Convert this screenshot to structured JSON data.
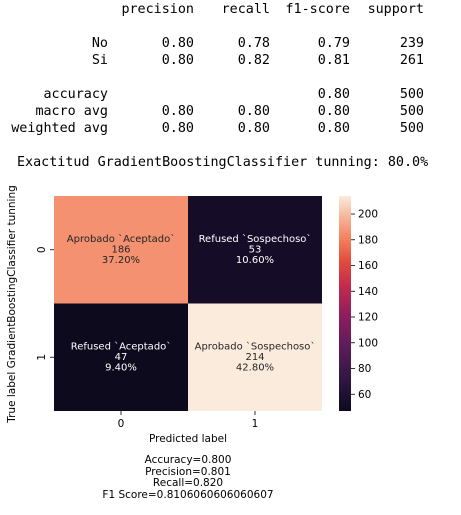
{
  "report": {
    "headers": [
      "precision",
      "recall",
      "f1-score",
      "support"
    ],
    "rows": [
      {
        "label": "No",
        "values": [
          "0.80",
          "0.78",
          "0.79",
          "239"
        ]
      },
      {
        "label": "Si",
        "values": [
          "0.80",
          "0.82",
          "0.81",
          "261"
        ]
      },
      {
        "label": "accuracy",
        "values": [
          "",
          "",
          "0.80",
          "500"
        ]
      },
      {
        "label": "macro avg",
        "values": [
          "0.80",
          "0.80",
          "0.80",
          "500"
        ]
      },
      {
        "label": "weighted avg",
        "values": [
          "0.80",
          "0.80",
          "0.80",
          "500"
        ]
      }
    ]
  },
  "exactitud_line": "Exactitud GradientBoostingClassifier tunning: 80.0%",
  "chart_data": {
    "type": "heatmap",
    "xlabel": "Predicted label",
    "ylabel": "True label GradientBoostingClassifier tunning",
    "x_ticks": [
      "0",
      "1"
    ],
    "y_ticks": [
      "0",
      "1"
    ],
    "matrix": [
      [
        186,
        53
      ],
      [
        47,
        214
      ]
    ],
    "annotations": [
      [
        {
          "name": "Aprobado `Aceptado`",
          "count": "186",
          "pct": "37.20%"
        },
        {
          "name": "Refused `Sospechoso`",
          "count": "53",
          "pct": "10.60%"
        }
      ],
      [
        {
          "name": "Refused `Aceptado`",
          "count": "47",
          "pct": "9.40%"
        },
        {
          "name": "Aprobado `Sospechoso`",
          "count": "214",
          "pct": "42.80%"
        }
      ]
    ],
    "colorbar_range": [
      47,
      214
    ],
    "colorbar_ticks": [
      60,
      80,
      100,
      120,
      140,
      160,
      180,
      200
    ],
    "colormap": "rocket",
    "metrics_text": [
      "Accuracy=0.800",
      "Precision=0.801",
      "Recall=0.820",
      "F1 Score=0.8106060606060607"
    ]
  }
}
